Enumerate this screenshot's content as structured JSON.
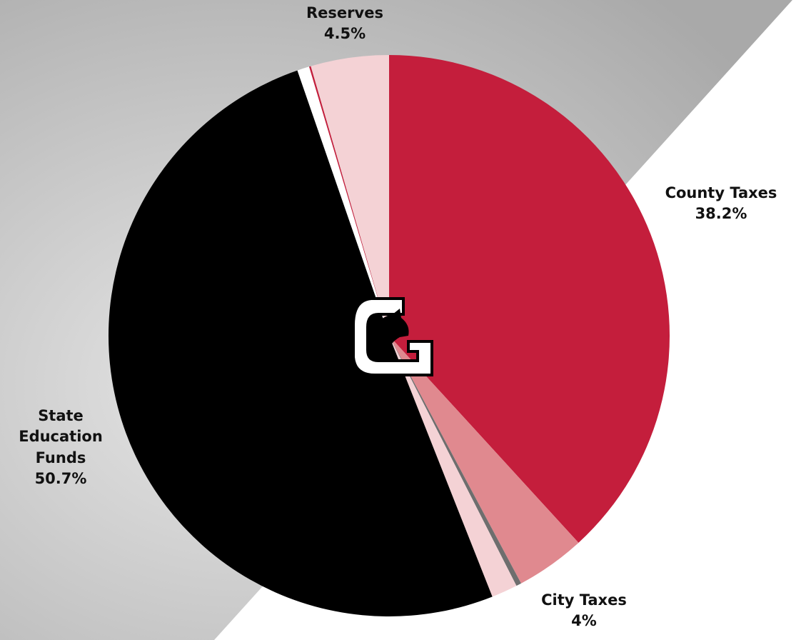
{
  "chart_data": {
    "type": "pie",
    "categories": [
      "County Taxes",
      "City Taxes",
      null,
      null,
      "State Education Funds",
      null,
      null,
      "Reserves"
    ],
    "values": [
      38.2,
      4,
      0.3,
      1.5,
      50.7,
      0.7,
      0.1,
      4.5
    ],
    "value_labels": [
      "38.2%",
      "4%",
      null,
      null,
      "50.7%",
      null,
      null,
      "4.5%"
    ],
    "colors": [
      "#c41e3c",
      "#e0898f",
      "#6e6e6e",
      "#f4d2d5",
      "#000000",
      "#ffffff",
      "#c41e3c",
      "#f4d2d5"
    ]
  }
}
